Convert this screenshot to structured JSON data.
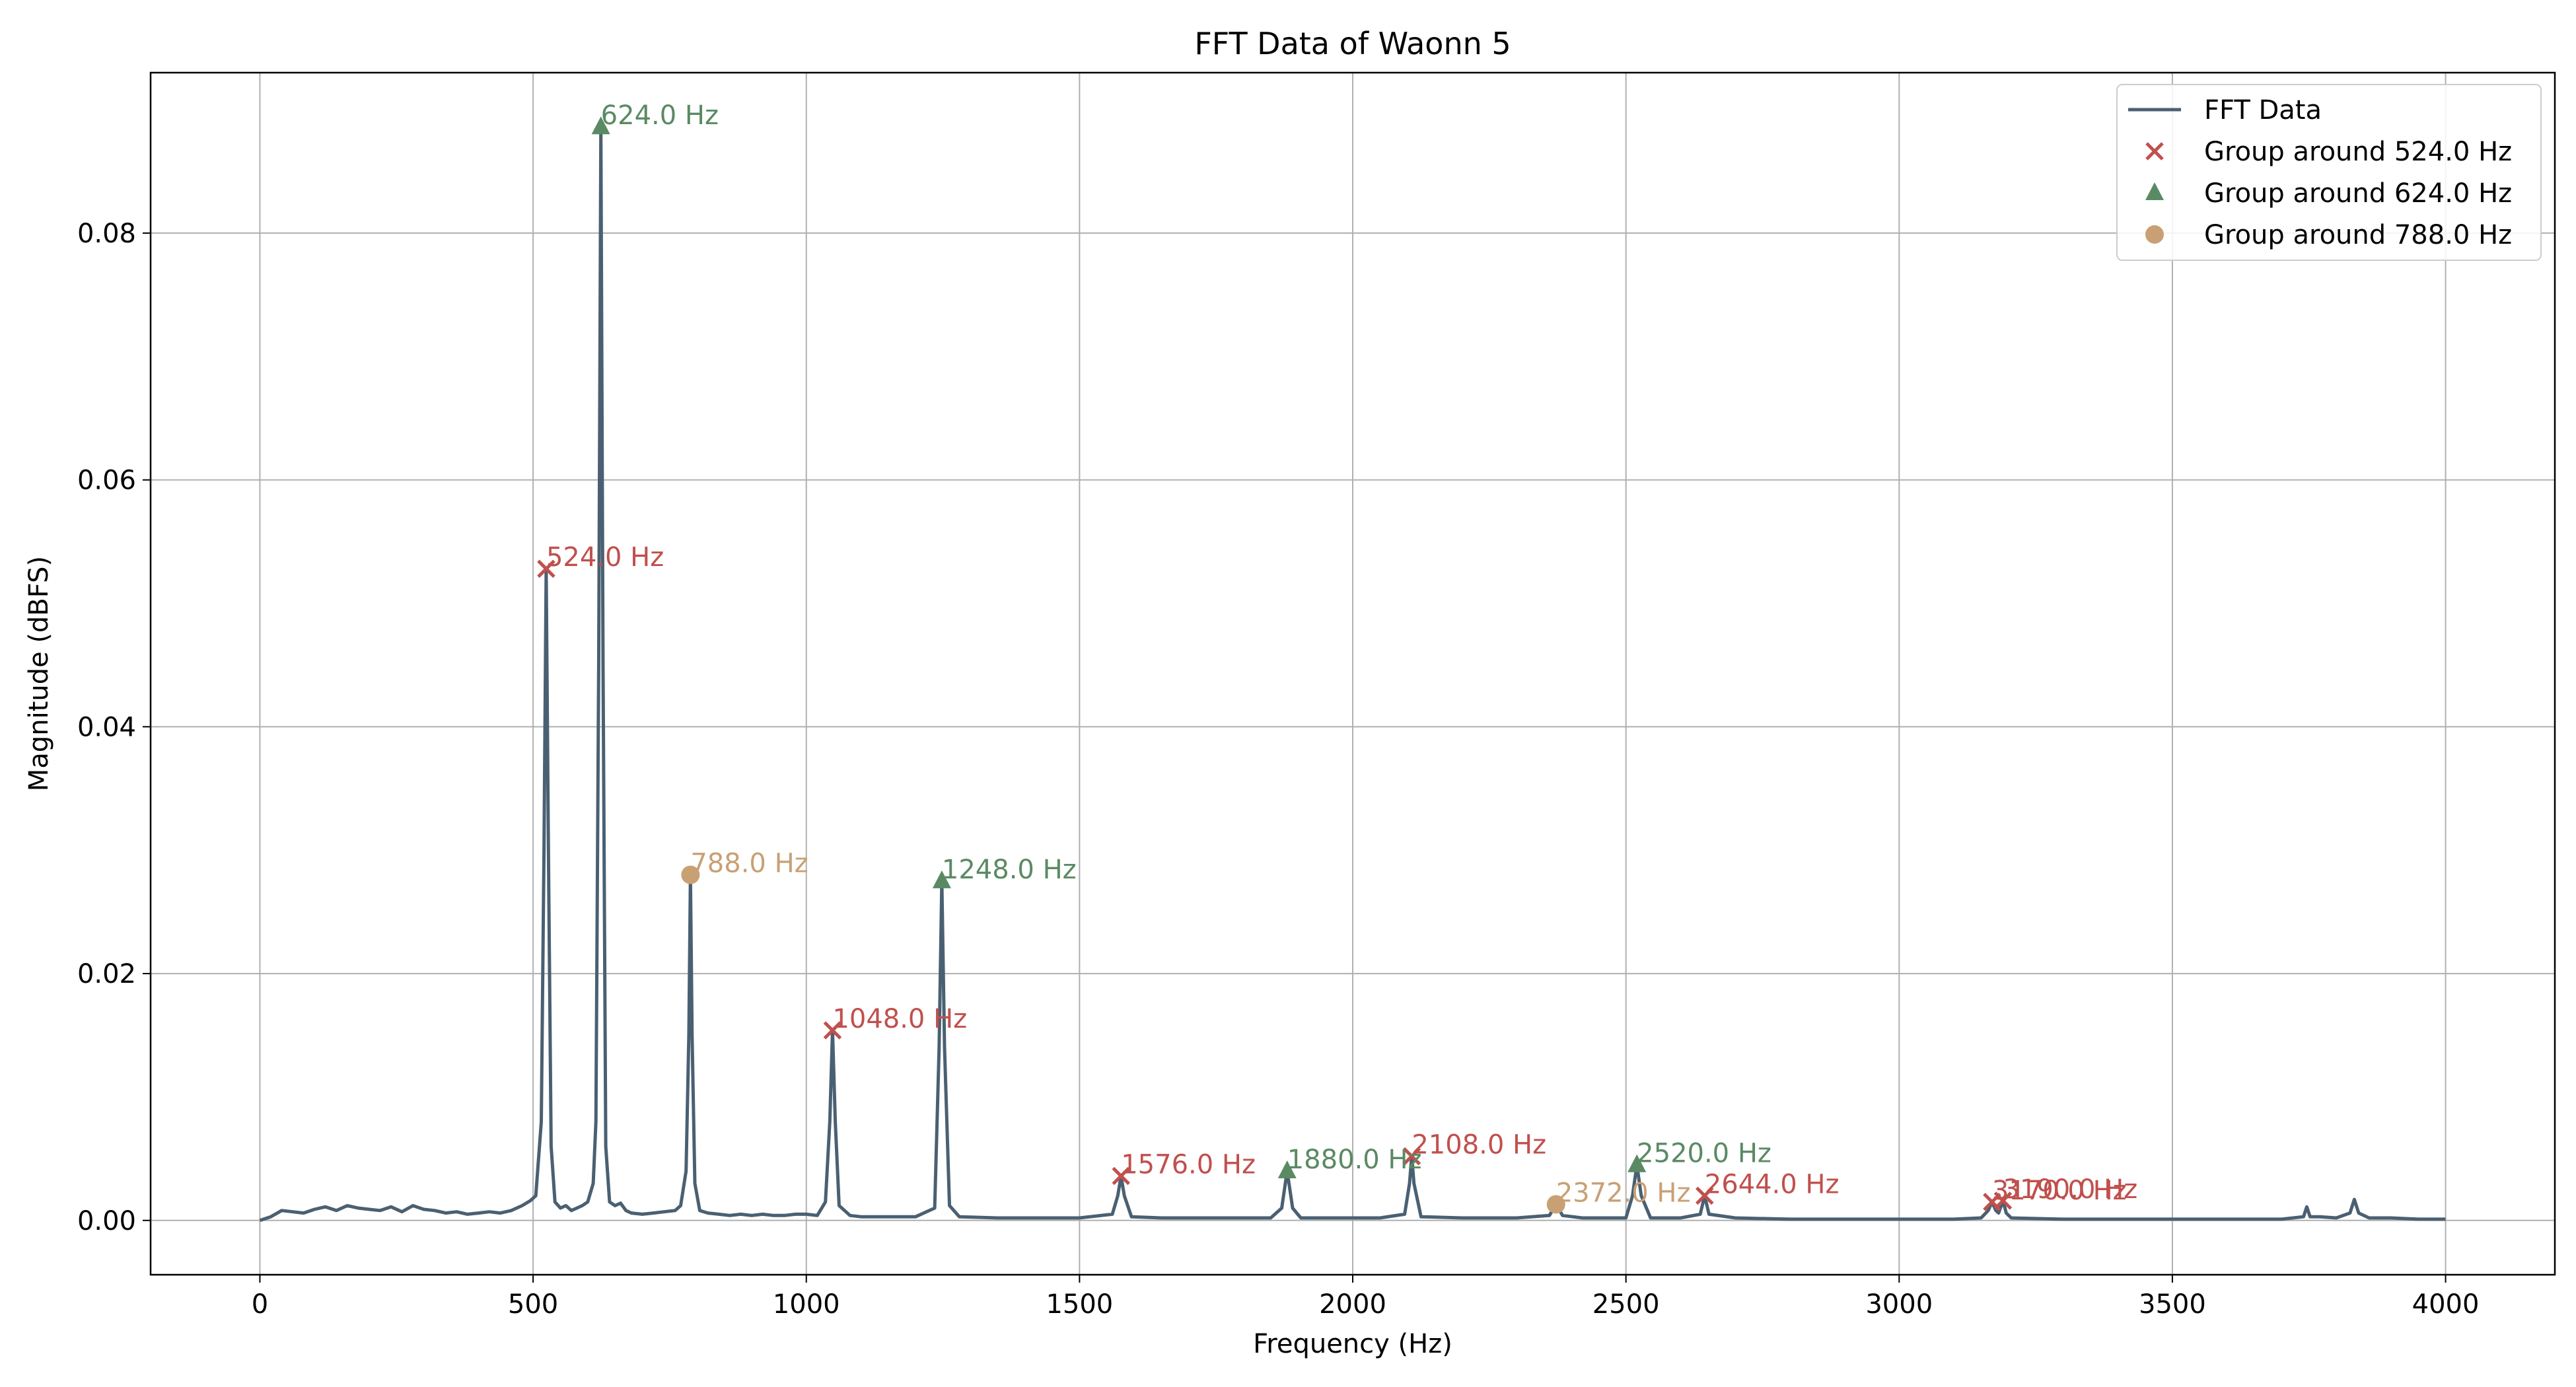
{
  "chart_data": {
    "type": "line",
    "title": "FFT Data of Waonn 5",
    "xlabel": "Frequency (Hz)",
    "ylabel": "Magnitude (dBFS)",
    "xlim": [
      -200,
      4200
    ],
    "ylim": [
      -0.0044,
      0.093
    ],
    "xticks": [
      0,
      500,
      1000,
      1500,
      2000,
      2500,
      3000,
      3500,
      4000
    ],
    "xtick_labels": [
      "0",
      "500",
      "1000",
      "1500",
      "2000",
      "2500",
      "3000",
      "3500",
      "4000"
    ],
    "yticks": [
      0.0,
      0.02,
      0.04,
      0.06,
      0.08
    ],
    "ytick_labels": [
      "0.00",
      "0.02",
      "0.04",
      "0.06",
      "0.08"
    ],
    "grid": true,
    "legend": {
      "position": "top-right",
      "entries": [
        {
          "label": "FFT Data",
          "marker": "line",
          "color": "#4a6072"
        },
        {
          "label": "Group around 524.0 Hz",
          "marker": "x",
          "color": "#c0504d"
        },
        {
          "label": "Group around 624.0 Hz",
          "marker": "triangle",
          "color": "#5a8a64"
        },
        {
          "label": "Group around 788.0 Hz",
          "marker": "circle",
          "color": "#c9a074"
        }
      ]
    },
    "series": [
      {
        "name": "FFT Data",
        "color": "#4a6072",
        "x": [
          0,
          20,
          40,
          60,
          80,
          100,
          120,
          140,
          160,
          180,
          200,
          220,
          240,
          260,
          280,
          300,
          320,
          340,
          360,
          380,
          400,
          420,
          440,
          460,
          480,
          495,
          505,
          515,
          520,
          524,
          528,
          533,
          540,
          550,
          560,
          570,
          580,
          590,
          600,
          610,
          615,
          620,
          624,
          628,
          633,
          640,
          650,
          660,
          670,
          680,
          700,
          720,
          740,
          760,
          770,
          780,
          785,
          788,
          791,
          796,
          805,
          820,
          840,
          860,
          880,
          900,
          920,
          940,
          960,
          980,
          1000,
          1020,
          1035,
          1043,
          1048,
          1053,
          1060,
          1080,
          1100,
          1150,
          1200,
          1235,
          1243,
          1248,
          1253,
          1262,
          1280,
          1350,
          1450,
          1500,
          1560,
          1570,
          1576,
          1582,
          1595,
          1650,
          1750,
          1850,
          1870,
          1880,
          1890,
          1905,
          1950,
          2050,
          2095,
          2104,
          2108,
          2112,
          2125,
          2200,
          2300,
          2360,
          2372,
          2384,
          2420,
          2500,
          2512,
          2520,
          2528,
          2545,
          2600,
          2636,
          2644,
          2652,
          2700,
          2800,
          2900,
          3000,
          3100,
          3150,
          3163,
          3170,
          3177,
          3182,
          3190,
          3196,
          3205,
          3300,
          3500,
          3700,
          3740,
          3746,
          3752,
          3770,
          3800,
          3825,
          3833,
          3841,
          3860,
          3900,
          3950,
          4000
        ],
        "y": [
          0.0,
          0.0003,
          0.0008,
          0.0007,
          0.0006,
          0.0009,
          0.0011,
          0.0008,
          0.0012,
          0.001,
          0.0009,
          0.0008,
          0.0011,
          0.0007,
          0.0012,
          0.0009,
          0.0008,
          0.0006,
          0.0007,
          0.0005,
          0.0006,
          0.0007,
          0.0006,
          0.0008,
          0.0012,
          0.0016,
          0.002,
          0.008,
          0.03,
          0.0528,
          0.03,
          0.006,
          0.0015,
          0.001,
          0.0012,
          0.0008,
          0.001,
          0.0012,
          0.0015,
          0.003,
          0.008,
          0.045,
          0.0886,
          0.045,
          0.006,
          0.0015,
          0.0012,
          0.0014,
          0.0008,
          0.0006,
          0.0005,
          0.0006,
          0.0007,
          0.0008,
          0.0012,
          0.004,
          0.015,
          0.028,
          0.015,
          0.003,
          0.0008,
          0.0006,
          0.0005,
          0.0004,
          0.0005,
          0.0004,
          0.0005,
          0.0004,
          0.0004,
          0.0005,
          0.0005,
          0.0004,
          0.0015,
          0.008,
          0.0154,
          0.008,
          0.0012,
          0.0004,
          0.0003,
          0.0003,
          0.0003,
          0.001,
          0.014,
          0.0275,
          0.014,
          0.0012,
          0.0003,
          0.0002,
          0.0002,
          0.0002,
          0.0005,
          0.002,
          0.0036,
          0.002,
          0.0003,
          0.0002,
          0.0002,
          0.0002,
          0.001,
          0.004,
          0.001,
          0.0002,
          0.0002,
          0.0002,
          0.0005,
          0.003,
          0.0052,
          0.003,
          0.0003,
          0.0002,
          0.0002,
          0.0004,
          0.0013,
          0.0004,
          0.0002,
          0.0002,
          0.002,
          0.0045,
          0.002,
          0.0002,
          0.0002,
          0.0005,
          0.002,
          0.0005,
          0.0002,
          0.0001,
          0.0001,
          0.0001,
          0.0001,
          0.0002,
          0.0008,
          0.0015,
          0.0008,
          0.0006,
          0.0016,
          0.0006,
          0.0002,
          0.0001,
          0.0001,
          0.0001,
          0.0003,
          0.0011,
          0.0003,
          0.0003,
          0.0002,
          0.0006,
          0.0017,
          0.0006,
          0.0002,
          0.0002,
          0.0001,
          0.0001
        ]
      }
    ],
    "peak_groups": [
      {
        "name": "Group around 524.0 Hz",
        "marker": "x",
        "color": "#c0504d",
        "points": [
          {
            "x": 524,
            "y": 0.0528,
            "label": "524.0 Hz"
          },
          {
            "x": 1048,
            "y": 0.0154,
            "label": "1048.0 Hz"
          },
          {
            "x": 1576,
            "y": 0.0036,
            "label": "1576.0 Hz"
          },
          {
            "x": 2108,
            "y": 0.0052,
            "label": "2108.0 Hz"
          },
          {
            "x": 2644,
            "y": 0.002,
            "label": "2644.0 Hz"
          },
          {
            "x": 3170,
            "y": 0.0015,
            "label": "3170.0 Hz"
          },
          {
            "x": 3190,
            "y": 0.0016,
            "label": "3190.0 Hz"
          }
        ]
      },
      {
        "name": "Group around 624.0 Hz",
        "marker": "triangle",
        "color": "#5a8a64",
        "points": [
          {
            "x": 624,
            "y": 0.0886,
            "label": "624.0 Hz"
          },
          {
            "x": 1248,
            "y": 0.0275,
            "label": "1248.0 Hz"
          },
          {
            "x": 1880,
            "y": 0.004,
            "label": "1880.0 Hz"
          },
          {
            "x": 2520,
            "y": 0.0045,
            "label": "2520.0 Hz"
          }
        ]
      },
      {
        "name": "Group around 788.0 Hz",
        "marker": "circle",
        "color": "#c9a074",
        "points": [
          {
            "x": 788,
            "y": 0.028,
            "label": "788.0 Hz"
          },
          {
            "x": 2372,
            "y": 0.0013,
            "label": "2372.0 Hz"
          }
        ]
      }
    ]
  }
}
